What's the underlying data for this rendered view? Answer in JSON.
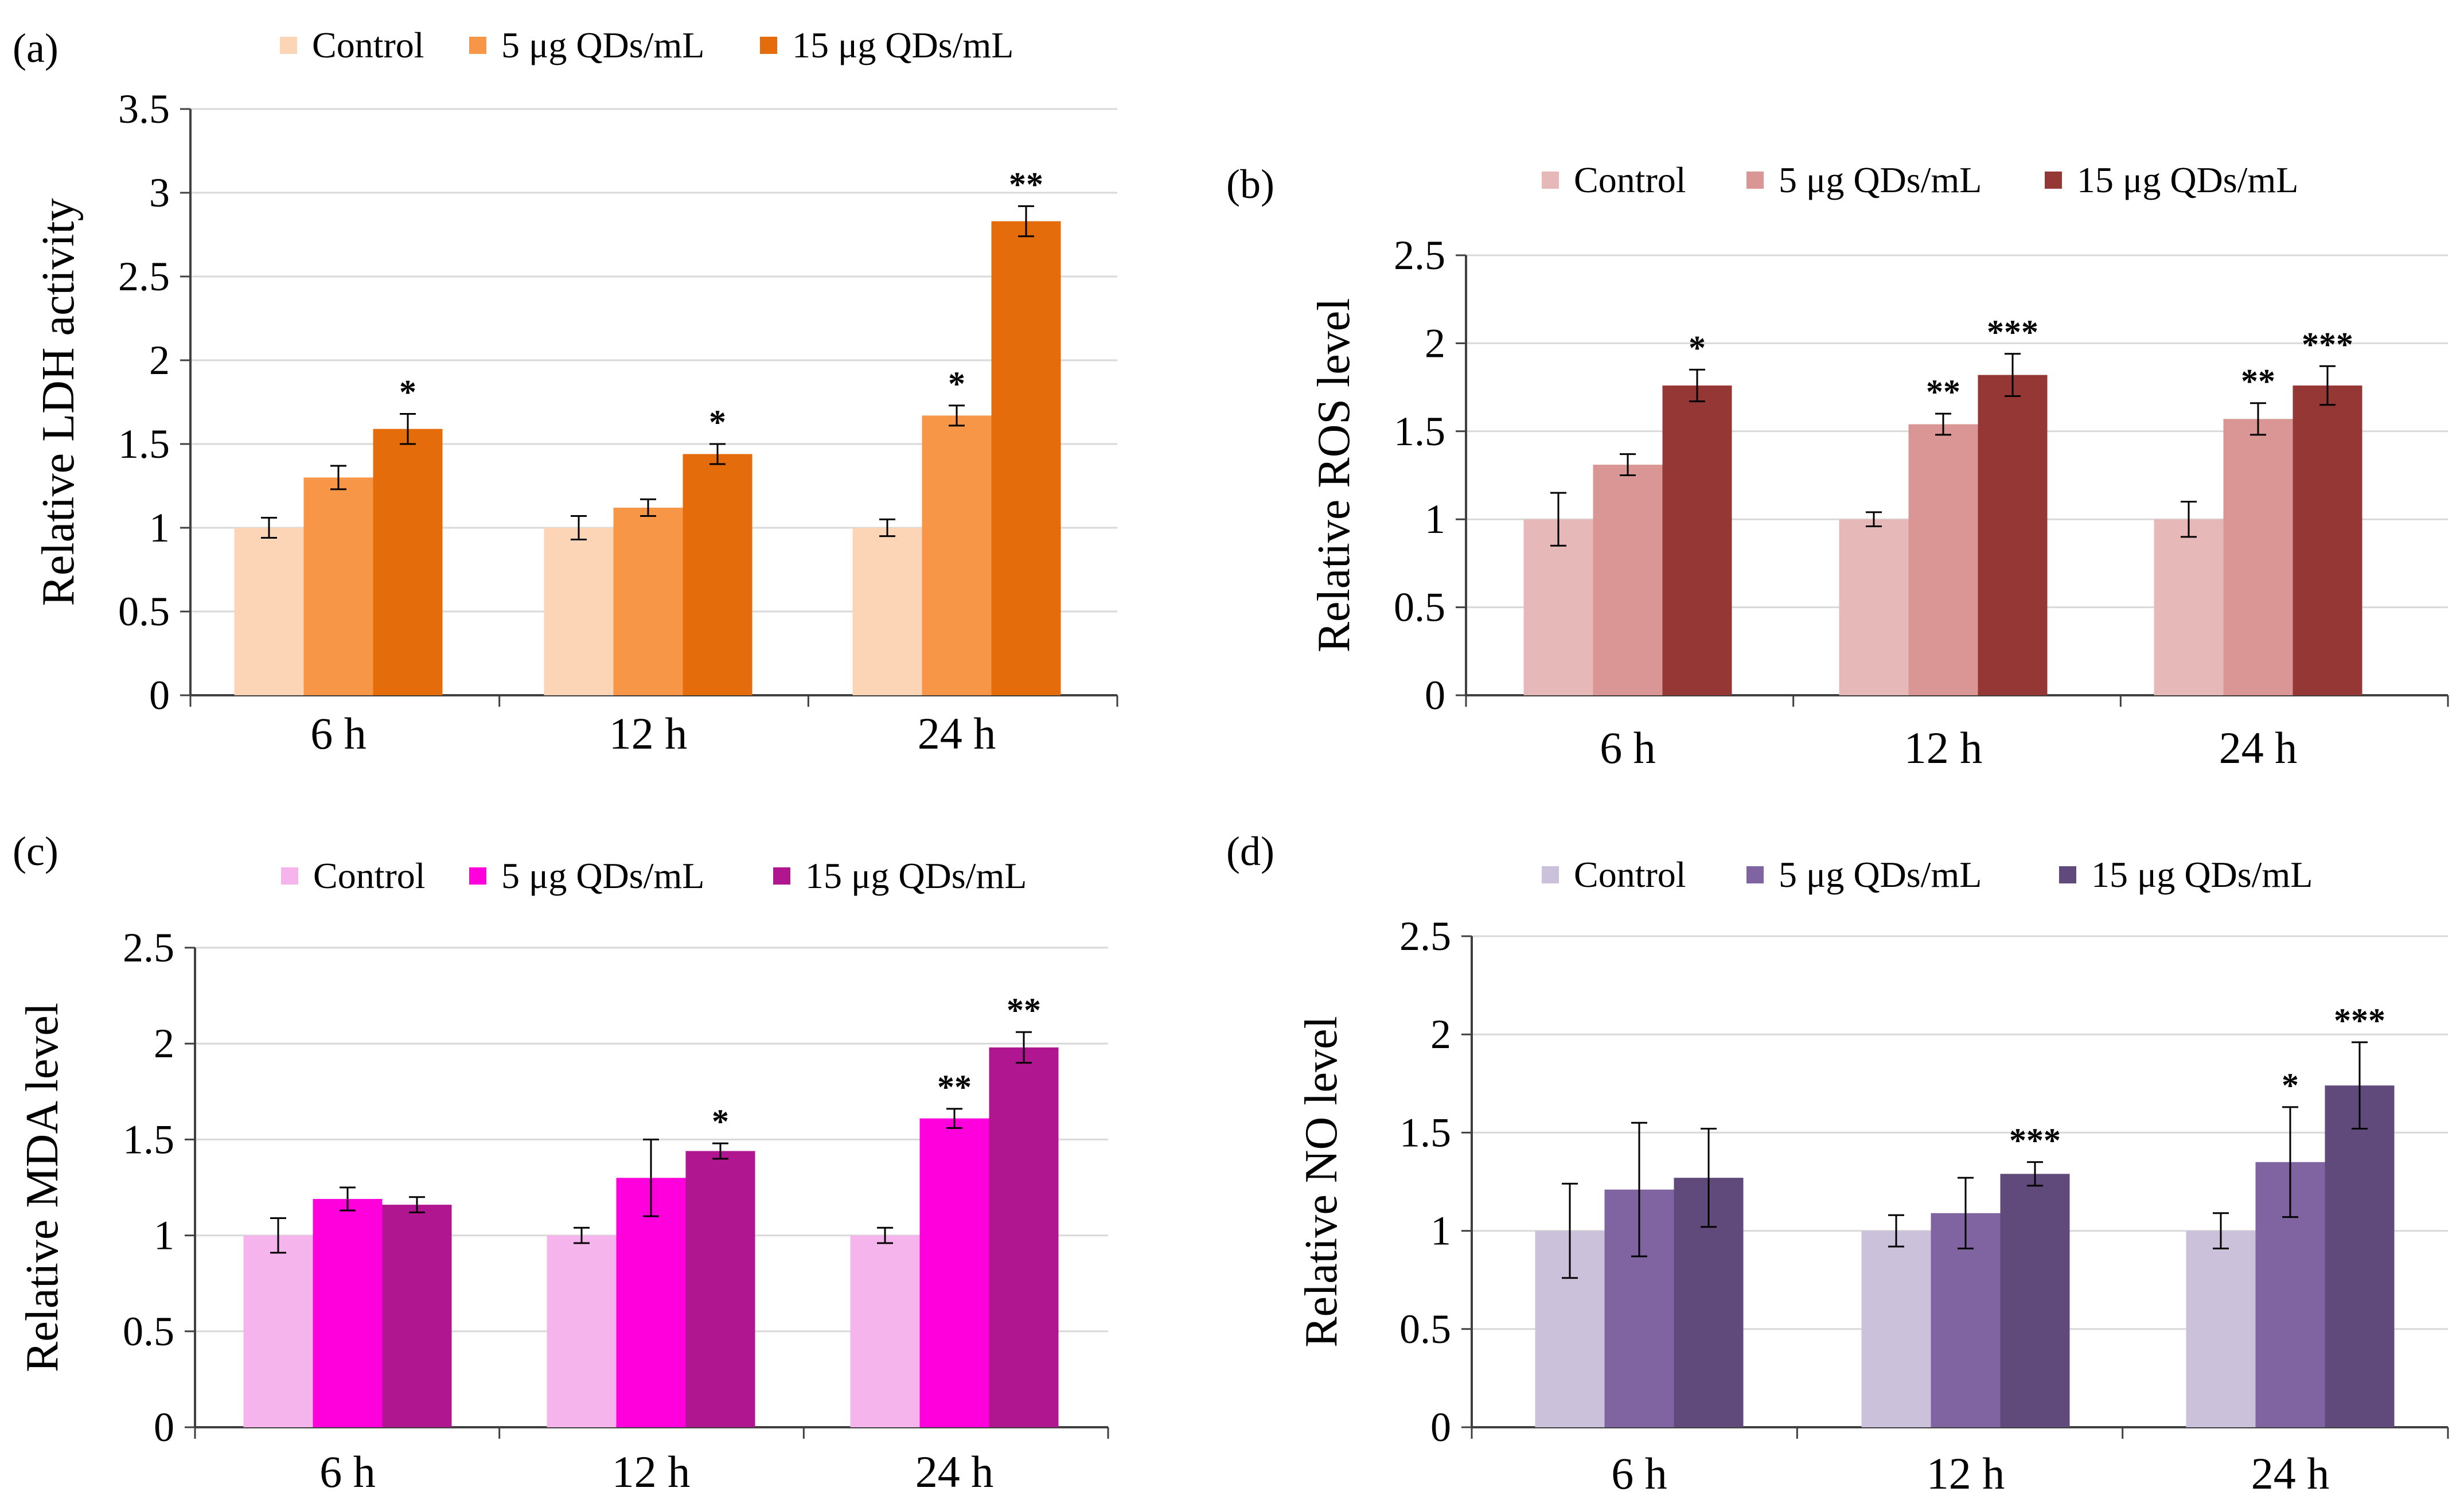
{
  "chart_data": [
    {
      "type": "bar",
      "panel_label": "(a)",
      "title": "",
      "xlabel": "",
      "ylabel": "Relative LDH activity",
      "ylim": [
        0,
        3.5
      ],
      "yticks": [
        "0",
        "0.5",
        "1",
        "1.5",
        "2",
        "2.5",
        "3",
        "3.5"
      ],
      "grid": true,
      "legend_position": "top",
      "categories": [
        "6 h",
        "12 h",
        "24 h"
      ],
      "series": [
        {
          "name": "Control",
          "color": "#FBD5B5",
          "values": [
            1.0,
            1.0,
            1.0
          ],
          "errors": [
            0.06,
            0.07,
            0.05
          ],
          "stars": [
            "",
            "",
            ""
          ]
        },
        {
          "name": "5 μg QDs/mL",
          "color": "#F79646",
          "values": [
            1.3,
            1.12,
            1.67
          ],
          "errors": [
            0.07,
            0.05,
            0.06
          ],
          "stars": [
            "",
            "",
            "*"
          ]
        },
        {
          "name": "15 μg QDs/mL",
          "color": "#E46C0A",
          "values": [
            1.59,
            1.44,
            2.83
          ],
          "errors": [
            0.09,
            0.06,
            0.09
          ],
          "stars": [
            "*",
            "*",
            "**"
          ]
        }
      ]
    },
    {
      "type": "bar",
      "panel_label": "(b)",
      "title": "",
      "xlabel": "",
      "ylabel": "Relative ROS level",
      "ylim": [
        0,
        2.5
      ],
      "yticks": [
        "0",
        "0.5",
        "1",
        "1.5",
        "2",
        "2.5"
      ],
      "grid": true,
      "legend_position": "top",
      "categories": [
        "6 h",
        "12 h",
        "24 h"
      ],
      "series": [
        {
          "name": "Control",
          "color": "#E6B9B8",
          "values": [
            1.0,
            1.0,
            1.0
          ],
          "errors": [
            0.15,
            0.04,
            0.1
          ],
          "stars": [
            "",
            "",
            ""
          ]
        },
        {
          "name": "5 μg QDs/mL",
          "color": "#D99694",
          "values": [
            1.31,
            1.54,
            1.57
          ],
          "errors": [
            0.06,
            0.06,
            0.09
          ],
          "stars": [
            "",
            "**",
            "**"
          ]
        },
        {
          "name": "15 μg QDs/mL",
          "color": "#953735",
          "values": [
            1.76,
            1.82,
            1.76
          ],
          "errors": [
            0.09,
            0.12,
            0.11
          ],
          "stars": [
            "*",
            "***",
            "***"
          ]
        }
      ]
    },
    {
      "type": "bar",
      "panel_label": "(c)",
      "title": "",
      "xlabel": "",
      "ylabel": "Relative MDA level",
      "ylim": [
        0,
        2.5
      ],
      "yticks": [
        "0",
        "0.5",
        "1",
        "1.5",
        "2",
        "2.5"
      ],
      "grid": true,
      "legend_position": "top",
      "categories": [
        "6 h",
        "12 h",
        "24 h"
      ],
      "series": [
        {
          "name": "Control",
          "color": "#F5B4EC",
          "values": [
            1.0,
            1.0,
            1.0
          ],
          "errors": [
            0.09,
            0.04,
            0.04
          ],
          "stars": [
            "",
            "",
            ""
          ]
        },
        {
          "name": "5 μg QDs/mL",
          "color": "#FF00DD",
          "values": [
            1.19,
            1.3,
            1.61
          ],
          "errors": [
            0.06,
            0.2,
            0.05
          ],
          "stars": [
            "",
            "",
            "**"
          ]
        },
        {
          "name": "15 μg QDs/mL",
          "color": "#B0168F",
          "values": [
            1.16,
            1.44,
            1.98
          ],
          "errors": [
            0.04,
            0.04,
            0.08
          ],
          "stars": [
            "",
            "*",
            "**"
          ]
        }
      ]
    },
    {
      "type": "bar",
      "panel_label": "(d)",
      "title": "",
      "xlabel": "",
      "ylabel": "Relative NO level",
      "ylim": [
        0,
        2.5
      ],
      "yticks": [
        "0",
        "0.5",
        "1",
        "1.5",
        "2",
        "2.5"
      ],
      "grid": true,
      "legend_position": "top",
      "categories": [
        "6 h",
        "12 h",
        "24 h"
      ],
      "series": [
        {
          "name": "Control",
          "color": "#CCC1DA",
          "values": [
            1.0,
            1.0,
            1.0
          ],
          "errors": [
            0.24,
            0.08,
            0.09
          ],
          "stars": [
            "",
            "",
            ""
          ]
        },
        {
          "name": "5 μg QDs/mL",
          "color": "#8064A2",
          "values": [
            1.21,
            1.09,
            1.35
          ],
          "errors": [
            0.34,
            0.18,
            0.28
          ],
          "stars": [
            "",
            "",
            "*"
          ]
        },
        {
          "name": "15 μg QDs/mL",
          "color": "#604A7B",
          "values": [
            1.27,
            1.29,
            1.74
          ],
          "errors": [
            0.25,
            0.06,
            0.22
          ],
          "stars": [
            "",
            "***",
            "***"
          ]
        }
      ]
    }
  ]
}
